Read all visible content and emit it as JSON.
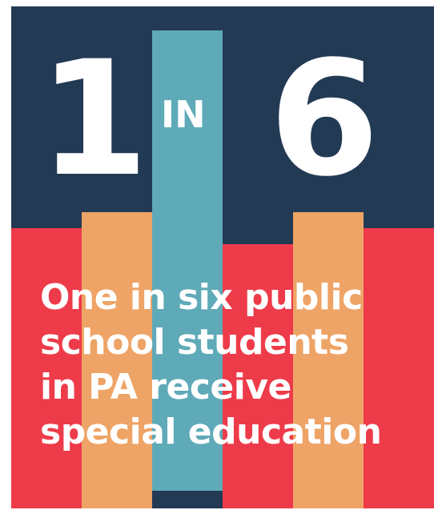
{
  "headline": {
    "first_number": "1",
    "connector": "IN",
    "second_number": "6"
  },
  "caption": {
    "lines": [
      "One in six public",
      "school students",
      "in PA receive",
      "special education"
    ]
  },
  "colors": {
    "navy": "#233a55",
    "teal": "#5faab8",
    "red": "#ee3b4a",
    "orange": "#eea466",
    "text": "#ffffff"
  }
}
